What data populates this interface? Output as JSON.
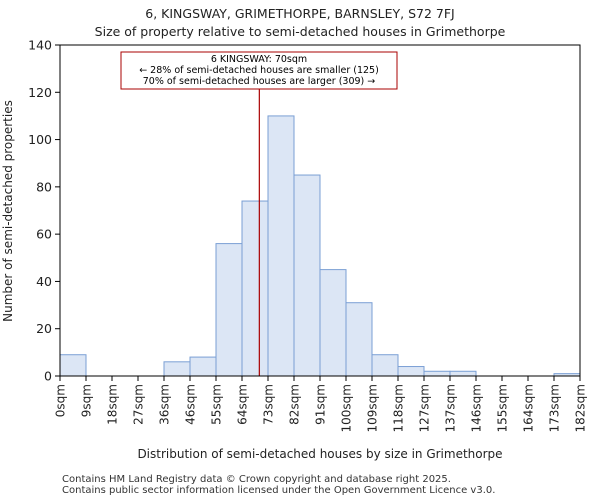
{
  "chart_data": {
    "type": "bar",
    "title": "6, KINGSWAY, GRIMETHORPE, BARNSLEY, S72 7FJ",
    "subtitle": "Size of property relative to semi-detached houses in Grimethorpe",
    "xlabel": "Distribution of semi-detached houses by size in Grimethorpe",
    "ylabel": "Number of semi-detached properties",
    "bin_edges": [
      0,
      9,
      18,
      27,
      36,
      46,
      55,
      64,
      73,
      82,
      91,
      100,
      109,
      118,
      127,
      137,
      146,
      155,
      164,
      173,
      182
    ],
    "tick_labels": [
      "0sqm",
      "9sqm",
      "18sqm",
      "27sqm",
      "36sqm",
      "46sqm",
      "55sqm",
      "64sqm",
      "73sqm",
      "82sqm",
      "91sqm",
      "100sqm",
      "109sqm",
      "118sqm",
      "127sqm",
      "137sqm",
      "146sqm",
      "155sqm",
      "164sqm",
      "173sqm",
      "182sqm"
    ],
    "values": [
      9,
      0,
      0,
      0,
      6,
      8,
      56,
      74,
      110,
      85,
      45,
      31,
      9,
      4,
      2,
      2,
      0,
      0,
      0,
      1
    ],
    "ylim": [
      0,
      140
    ],
    "yticks": [
      0,
      20,
      40,
      60,
      80,
      100,
      120,
      140
    ],
    "marker_value": 70,
    "annotation": {
      "line1": "6 KINGSWAY: 70sqm",
      "line2": "← 28% of semi-detached houses are smaller (125)",
      "line3": "70% of semi-detached houses are larger (309) →"
    },
    "colors": {
      "bar_fill": "#dce6f5",
      "bar_stroke": "#7a9fd4",
      "marker": "#aa0000"
    }
  },
  "footer": {
    "line1": "Contains HM Land Registry data © Crown copyright and database right 2025.",
    "line2": "Contains public sector information licensed under the Open Government Licence v3.0."
  }
}
